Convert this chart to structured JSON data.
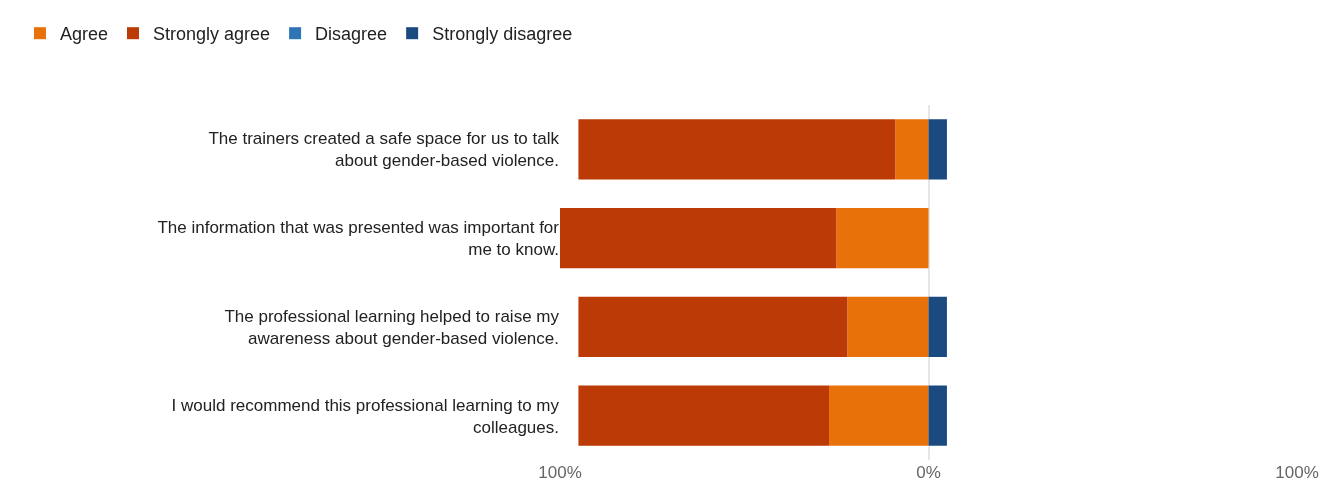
{
  "chart_data": {
    "type": "bar",
    "orientation": "horizontal",
    "stacked": true,
    "categories": [
      "The trainers created a safe space for us to talk about gender-based violence.",
      "The information that was presented was important for me to know.",
      "The professional learning helped to raise my awareness about gender-based violence.",
      "I would recommend this professional learning to my colleagues."
    ],
    "series": [
      {
        "name": "Agree",
        "color": "#e8710a",
        "values": [
          -9,
          -25,
          -22,
          -27
        ]
      },
      {
        "name": "Strongly agree",
        "color": "#bb3a05",
        "values": [
          -86,
          -75,
          -73,
          -68
        ]
      },
      {
        "name": "Disagree",
        "color": "#2e75b6",
        "values": [
          0,
          0,
          0,
          0
        ]
      },
      {
        "name": "Strongly disagree",
        "color": "#1a4a80",
        "values": [
          5,
          0,
          5,
          5
        ]
      }
    ],
    "xlim": [
      -100,
      100
    ],
    "xticks": [
      {
        "value": -100,
        "label": "100%"
      },
      {
        "value": 0,
        "label": "0%"
      },
      {
        "value": 100,
        "label": "100%"
      }
    ],
    "grid": "x",
    "legend": "top left"
  }
}
